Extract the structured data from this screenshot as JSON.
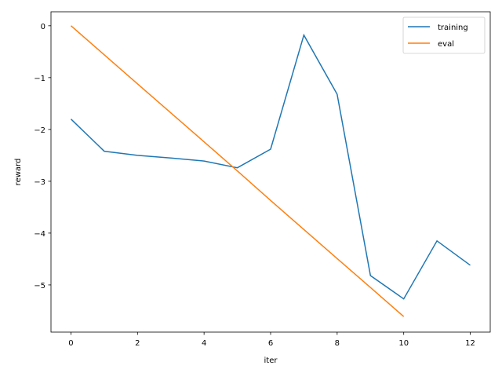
{
  "chart_data": {
    "type": "line",
    "title": "",
    "xlabel": "iter",
    "ylabel": "reward",
    "xlim": [
      -0.6,
      12.6
    ],
    "ylim": [
      -5.91,
      0.27
    ],
    "xticks": [
      0,
      2,
      4,
      6,
      8,
      10,
      12
    ],
    "yticks": [
      0,
      -1,
      -2,
      -3,
      -4,
      -5
    ],
    "ytick_labels": [
      "0",
      "−1",
      "−2",
      "−3",
      "−4",
      "−5"
    ],
    "grid": false,
    "legend_position": "top-right",
    "series": [
      {
        "name": "training",
        "color": "#1f77b4",
        "x": [
          0,
          1,
          2,
          3,
          4,
          5,
          6,
          7,
          8,
          9,
          10,
          11,
          12
        ],
        "y": [
          -1.8,
          -2.42,
          -2.5,
          -2.55,
          -2.61,
          -2.74,
          -2.38,
          -0.18,
          -1.32,
          -4.82,
          -5.27,
          -4.15,
          -4.62
        ]
      },
      {
        "name": "eval",
        "color": "#ff7f0e",
        "x": [
          0,
          1,
          2,
          3,
          4,
          5,
          6,
          7,
          8,
          9,
          10
        ],
        "y": [
          0,
          -0.56,
          -1.12,
          -1.68,
          -2.24,
          -2.8,
          -3.37,
          -3.93,
          -4.49,
          -5.05,
          -5.61
        ]
      }
    ]
  }
}
